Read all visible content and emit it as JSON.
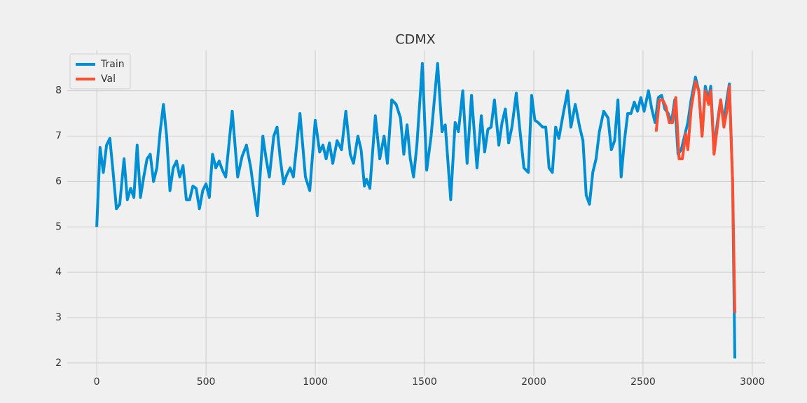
{
  "chart_data": {
    "type": "line",
    "title": "CDMX",
    "xlim": [
      -135,
      3058
    ],
    "ylim": [
      1.72,
      8.89
    ],
    "xticks": [
      0,
      500,
      1000,
      1500,
      2000,
      2500,
      3000
    ],
    "yticks": [
      2,
      3,
      4,
      5,
      6,
      7,
      8
    ],
    "grid": true,
    "legend": "upper left",
    "series": [
      {
        "name": "Train",
        "color": "#008fd5",
        "x": [
          0,
          15,
          30,
          45,
          60,
          75,
          90,
          105,
          125,
          140,
          155,
          170,
          185,
          200,
          215,
          230,
          245,
          260,
          275,
          290,
          305,
          320,
          335,
          350,
          365,
          380,
          395,
          410,
          425,
          440,
          455,
          470,
          485,
          500,
          515,
          530,
          545,
          560,
          575,
          590,
          620,
          645,
          665,
          685,
          705,
          720,
          735,
          760,
          775,
          790,
          810,
          825,
          840,
          855,
          870,
          885,
          900,
          930,
          955,
          975,
          1000,
          1020,
          1035,
          1050,
          1065,
          1080,
          1100,
          1120,
          1140,
          1160,
          1175,
          1195,
          1210,
          1225,
          1235,
          1250,
          1275,
          1295,
          1315,
          1330,
          1350,
          1370,
          1390,
          1405,
          1420,
          1435,
          1450,
          1465,
          1490,
          1510,
          1530,
          1560,
          1580,
          1595,
          1620,
          1640,
          1655,
          1675,
          1695,
          1715,
          1740,
          1760,
          1775,
          1790,
          1805,
          1820,
          1840,
          1855,
          1870,
          1885,
          1900,
          1920,
          1935,
          1955,
          1975,
          1990,
          2005,
          2020,
          2040,
          2055,
          2070,
          2085,
          2100,
          2115,
          2135,
          2155,
          2170,
          2190,
          2210,
          2225,
          2240,
          2255,
          2270,
          2285,
          2300,
          2320,
          2340,
          2355,
          2370,
          2385,
          2400,
          2415,
          2430,
          2445,
          2460,
          2475,
          2490,
          2505,
          2525,
          2540,
          2555,
          2570,
          2585,
          2600,
          2615,
          2630,
          2645,
          2660,
          2675,
          2690,
          2705,
          2720,
          2740,
          2755,
          2770,
          2785,
          2800,
          2810,
          2825,
          2840,
          2855,
          2870,
          2885,
          2895,
          2910,
          2920
        ],
        "values": [
          5.0,
          6.75,
          6.2,
          6.8,
          6.95,
          6.2,
          5.4,
          5.5,
          6.5,
          5.6,
          5.85,
          5.65,
          6.8,
          5.65,
          6.1,
          6.5,
          6.6,
          6.0,
          6.3,
          7.1,
          7.7,
          7.0,
          5.8,
          6.3,
          6.45,
          6.1,
          6.35,
          5.6,
          5.6,
          5.9,
          5.85,
          5.4,
          5.8,
          5.95,
          5.65,
          6.6,
          6.3,
          6.45,
          6.25,
          6.1,
          7.55,
          6.1,
          6.55,
          6.8,
          6.3,
          5.75,
          5.25,
          7.0,
          6.5,
          6.1,
          7.0,
          7.2,
          6.5,
          5.95,
          6.15,
          6.3,
          6.1,
          7.5,
          6.1,
          5.8,
          7.35,
          6.65,
          6.8,
          6.5,
          6.85,
          6.4,
          6.9,
          6.7,
          7.55,
          6.6,
          6.4,
          7.0,
          6.7,
          5.9,
          6.05,
          5.85,
          7.45,
          6.5,
          7.0,
          6.4,
          7.8,
          7.7,
          7.4,
          6.6,
          7.25,
          6.5,
          6.1,
          6.8,
          8.6,
          6.25,
          7.0,
          8.6,
          7.1,
          7.25,
          5.6,
          7.3,
          7.1,
          8.0,
          6.4,
          7.9,
          6.3,
          7.45,
          6.65,
          7.15,
          7.2,
          7.8,
          6.8,
          7.3,
          7.6,
          6.85,
          7.2,
          7.95,
          7.2,
          6.3,
          6.2,
          7.9,
          7.35,
          7.3,
          7.2,
          7.2,
          6.3,
          6.2,
          7.2,
          6.95,
          7.5,
          8.0,
          7.2,
          7.7,
          7.2,
          6.9,
          5.7,
          5.5,
          6.2,
          6.5,
          7.1,
          7.55,
          7.4,
          6.7,
          6.9,
          7.8,
          6.1,
          6.9,
          7.5,
          7.5,
          7.75,
          7.55,
          7.85,
          7.55,
          8.0,
          7.6,
          7.3,
          7.85,
          7.9,
          7.6,
          7.5,
          7.3,
          7.8,
          6.6,
          6.7,
          7.0,
          7.3,
          7.8,
          8.3,
          8.0,
          7.0,
          8.1,
          7.8,
          8.1,
          6.7,
          7.3,
          7.8,
          7.3,
          7.85,
          8.15,
          6.0,
          2.1
        ]
      },
      {
        "name": "Val",
        "color": "#fc4f30",
        "x": [
          2560,
          2575,
          2590,
          2605,
          2620,
          2635,
          2650,
          2665,
          2680,
          2695,
          2705,
          2720,
          2740,
          2755,
          2770,
          2785,
          2800,
          2810,
          2825,
          2840,
          2855,
          2870,
          2885,
          2895,
          2910,
          2920
        ],
        "values": [
          7.1,
          7.8,
          7.8,
          7.65,
          7.3,
          7.3,
          7.85,
          6.5,
          6.5,
          7.05,
          6.7,
          7.6,
          8.2,
          8.0,
          7.0,
          8.0,
          7.7,
          8.0,
          6.6,
          7.2,
          7.8,
          7.2,
          7.6,
          8.1,
          6.0,
          3.1
        ]
      }
    ]
  }
}
